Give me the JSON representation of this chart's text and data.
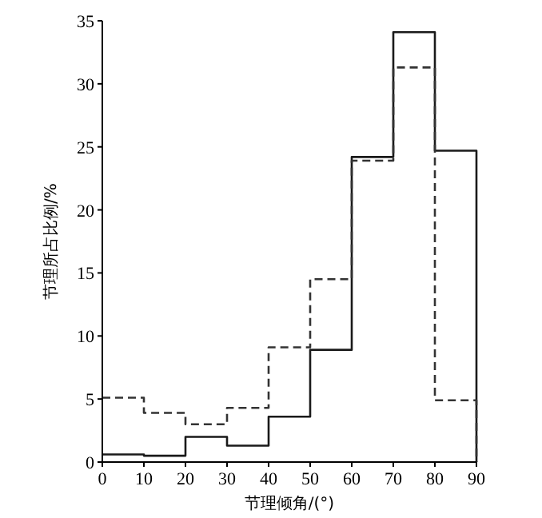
{
  "chart_data": {
    "type": "histogram",
    "xlabel": "节理倾角/(°)",
    "ylabel": "节理所占比例/%",
    "bins": [
      0,
      10,
      20,
      30,
      40,
      50,
      60,
      70,
      80,
      90
    ],
    "series": [
      {
        "color": "#1a1a1a",
        "line_style": "solid",
        "values": [
          0.6,
          0.5,
          2.0,
          1.3,
          3.6,
          8.9,
          24.2,
          34.1,
          24.7
        ]
      },
      {
        "color": "#333333",
        "line_style": "dashed",
        "values": [
          5.1,
          3.9,
          3.0,
          4.3,
          9.1,
          14.5,
          23.9,
          31.3,
          4.9
        ]
      }
    ],
    "xlim": [
      0,
      90
    ],
    "xticks": [
      0,
      10,
      20,
      30,
      40,
      50,
      60,
      70,
      80,
      90
    ],
    "ylim": [
      0,
      35
    ],
    "yticks": [
      0,
      5,
      10,
      15,
      20,
      25,
      30,
      35
    ]
  }
}
